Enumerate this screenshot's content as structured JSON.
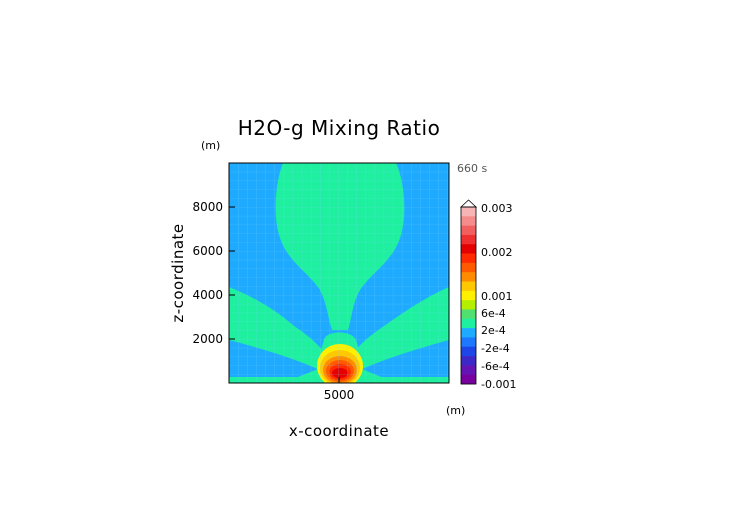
{
  "chart_data": {
    "type": "heatmap",
    "title": "H2O-g Mixing Ratio",
    "xlabel": "x-coordinate",
    "ylabel": "z-coordinate",
    "x_unit": "(m)",
    "y_unit": "(m)",
    "time_label": "660 s",
    "xlim": [
      0,
      10000
    ],
    "ylim": [
      0,
      10000
    ],
    "x_ticks": [
      5000
    ],
    "y_ticks": [
      2000,
      4000,
      6000,
      8000
    ],
    "grid": true,
    "colorbar": {
      "labels": [
        "0.003",
        "0.002",
        "0.001",
        "6e-4",
        "2e-4",
        "-2e-4",
        "-6e-4",
        "-0.001"
      ],
      "levels_top_to_bottom": [
        {
          "color": "#f7b4b4"
        },
        {
          "color": "#f48c8c"
        },
        {
          "color": "#f25f5f"
        },
        {
          "color": "#ee3030"
        },
        {
          "color": "#e40000"
        },
        {
          "color": "#ff2a00"
        },
        {
          "color": "#ff5a00"
        },
        {
          "color": "#ff8c00"
        },
        {
          "color": "#ffc800"
        },
        {
          "color": "#fff000"
        },
        {
          "color": "#b4ee00"
        },
        {
          "color": "#50e070"
        },
        {
          "color": "#1ef0a0"
        },
        {
          "color": "#1eaaff"
        },
        {
          "color": "#1e78ff"
        },
        {
          "color": "#1e46e6"
        },
        {
          "color": "#3c28c8"
        },
        {
          "color": "#6414b4"
        },
        {
          "color": "#7800a0"
        }
      ]
    },
    "field_summary": {
      "background_value_range": "-2e-4 to 2e-4",
      "plume_value_range": "2e-4 to 6e-4",
      "core_peak_value": 0.0025,
      "core_location": {
        "x": 5000,
        "z": 500
      }
    }
  }
}
